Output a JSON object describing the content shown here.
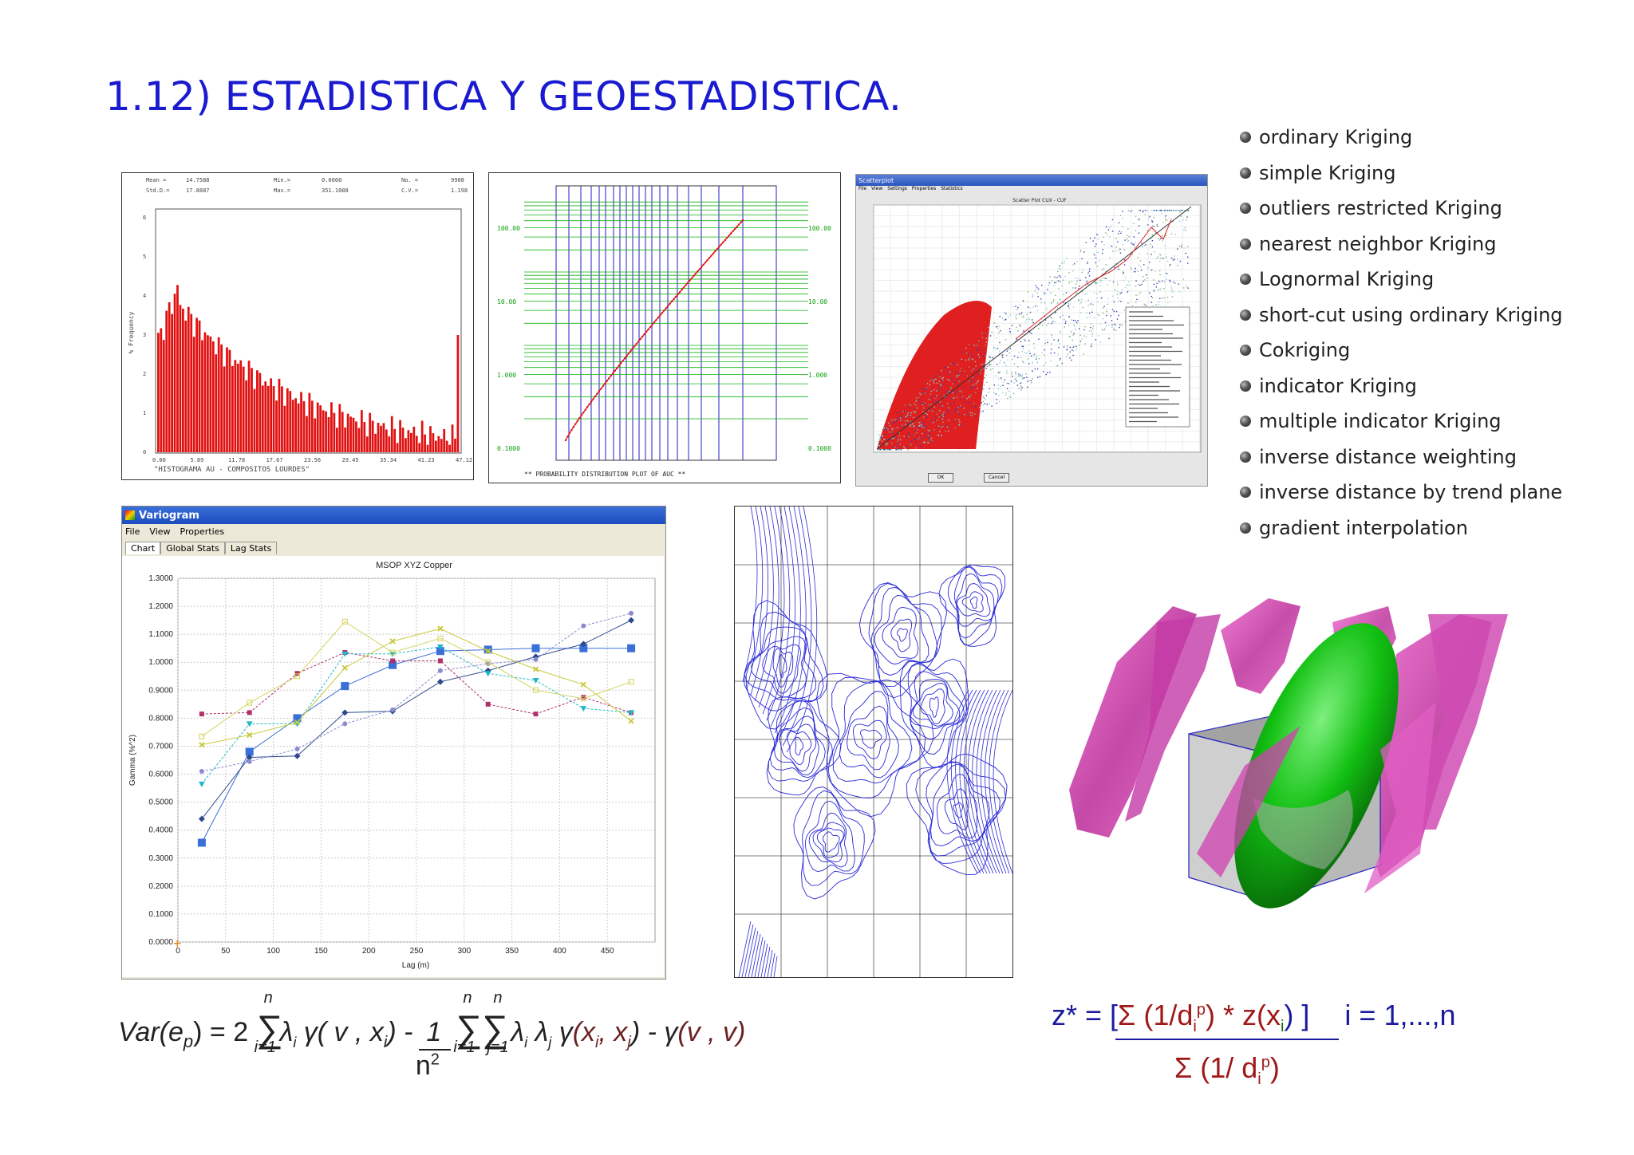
{
  "title": "1.12) ESTADISTICA Y GEOESTADISTICA.",
  "kriging_methods": [
    "ordinary Kriging",
    "simple Kriging",
    "outliers restricted Kriging",
    "nearest neighbor Kriging",
    "Lognormal Kriging",
    "short-cut using ordinary Kriging",
    "Cokriging",
    "indicator Kriging",
    "multiple indicator Kriging",
    "inverse distance weighting",
    "inverse distance by trend plane",
    "gradient interpolation"
  ],
  "histogram": {
    "stats": {
      "mean_label": "Mean =",
      "mean": "14.7588",
      "std_label": "Std.D.=",
      "std": "17.8887",
      "min_label": "Min.=",
      "min": "0.0000",
      "max_label": "Max.=",
      "max": "351.1088",
      "no_label": "No. =",
      "no": "9908",
      "cv_label": "C.V.=",
      "cv": "1.198"
    },
    "ylabel": "% Frequency",
    "caption": "\"HISTOGRAMA AU - COMPOSITOS LOURDES\"",
    "x_ticks": [
      "0.00",
      "5.89",
      "11.78",
      "17.67",
      "23.56",
      "29.45",
      "35.34",
      "41.23",
      "47.12"
    ],
    "y_ticks": [
      "0",
      "1",
      "2",
      "3",
      "4",
      "5",
      "6"
    ]
  },
  "probability_plot": {
    "caption": "** PROBABILITY DISTRIBUTION PLOT OF AUC **",
    "y_ticks": [
      "100.00",
      "10.00",
      "1.000",
      "0.1000"
    ]
  },
  "scatterplot": {
    "window_title": "Scatterplot",
    "menu": [
      "File",
      "View",
      "Settings",
      "Properties",
      "Statistics"
    ],
    "plot_title": "Scatter Plot CUX - CUF",
    "ok": "OK",
    "cancel": "Cancel"
  },
  "variogram": {
    "window_title": "Variogram",
    "menu": [
      "File",
      "View",
      "Properties"
    ],
    "tabs": [
      "Chart",
      "Global Stats",
      "Lag Stats"
    ]
  },
  "chart_data": {
    "type": "line",
    "title": "MSOP XYZ Copper",
    "xlabel": "Lag (m)",
    "ylabel": "Gamma (%^2)",
    "xlim": [
      0,
      500
    ],
    "ylim": [
      0,
      1.3
    ],
    "x_ticks": [
      0,
      50,
      100,
      150,
      200,
      250,
      300,
      350,
      400,
      450
    ],
    "y_ticks": [
      "0.0000",
      "0.1000",
      "0.2000",
      "0.3000",
      "0.4000",
      "0.5000",
      "0.6000",
      "0.7000",
      "0.8000",
      "0.9000",
      "1.0000",
      "1.1000",
      "1.2000",
      "1.3000"
    ],
    "x": [
      25,
      75,
      125,
      175,
      225,
      275,
      325,
      375,
      425,
      475
    ],
    "series": [
      {
        "color": "#3b6fd8",
        "marker": "square-large",
        "values": [
          0.355,
          0.68,
          0.8,
          0.915,
          0.99,
          1.04,
          1.045,
          1.05,
          1.05,
          1.05
        ]
      },
      {
        "color": "#b0306a",
        "marker": "square",
        "values": [
          0.815,
          0.82,
          0.96,
          1.035,
          1.005,
          1.005,
          0.85,
          0.815,
          0.875,
          0.82
        ]
      },
      {
        "color": "#2e4a8c",
        "marker": "diamond",
        "values": [
          0.44,
          0.66,
          0.665,
          0.82,
          0.825,
          0.93,
          0.97,
          1.02,
          1.065,
          1.15
        ]
      },
      {
        "color": "#20b8c8",
        "marker": "triangle",
        "values": [
          0.565,
          0.78,
          0.78,
          1.03,
          1.03,
          1.055,
          0.96,
          0.935,
          0.835,
          0.82
        ]
      },
      {
        "color": "#c8c83a",
        "marker": "x",
        "values": [
          0.705,
          0.74,
          0.785,
          0.98,
          1.075,
          1.12,
          1.04,
          0.975,
          0.92,
          0.79
        ]
      },
      {
        "color": "#8a8ad0",
        "marker": "circle",
        "values": [
          0.61,
          0.645,
          0.69,
          0.78,
          0.83,
          0.97,
          0.995,
          1.01,
          1.13,
          1.175
        ]
      },
      {
        "color": "#d4d460",
        "marker": "open-square",
        "values": [
          0.735,
          0.855,
          0.95,
          1.145,
          1.035,
          1.085,
          1.0,
          0.9,
          0.87,
          0.93
        ]
      }
    ]
  },
  "formula1": {
    "lhs": "Var(e",
    "lhs_sub": "p",
    "lhs_end": ") = 2",
    "sum_top": "n",
    "sum_bottom": "i=1",
    "term1": "( v , x",
    "term1_sub": "i",
    "term1_end": ") -",
    "frac_num": "1",
    "frac_den": "n",
    "frac_den_sup": "2",
    "sum2_top_a": "n",
    "sum2_top_b": "n",
    "sum2_bottom_a": "i=1",
    "sum2_bottom_b": "j=1",
    "term2": "(x",
    "term2_sub_i": "i",
    "term2_mid": ", x",
    "term2_sub_j": "j",
    "term2_end": ") -",
    "term3": "(v , v)"
  },
  "formula2": {
    "lhs": "z* = [",
    "sigma": "Σ",
    "num_part": "(1/d",
    "sub_i": "i",
    "sup_p": "p",
    "num_end": ") * z(x",
    "close": ") ]",
    "range": "i = 1,...,n",
    "den": "Σ (1/ d",
    "den_end": ")"
  },
  "colors": {
    "title": "#1a1ad0",
    "histogram_bars": "#e01010",
    "probability_curve": "#e01010",
    "probability_vlines": "#1f1fc8",
    "probability_hlines": "#10b010",
    "contour": "#2a2ad6",
    "solid_magenta": "#d040b0",
    "solid_green": "#10b010"
  }
}
